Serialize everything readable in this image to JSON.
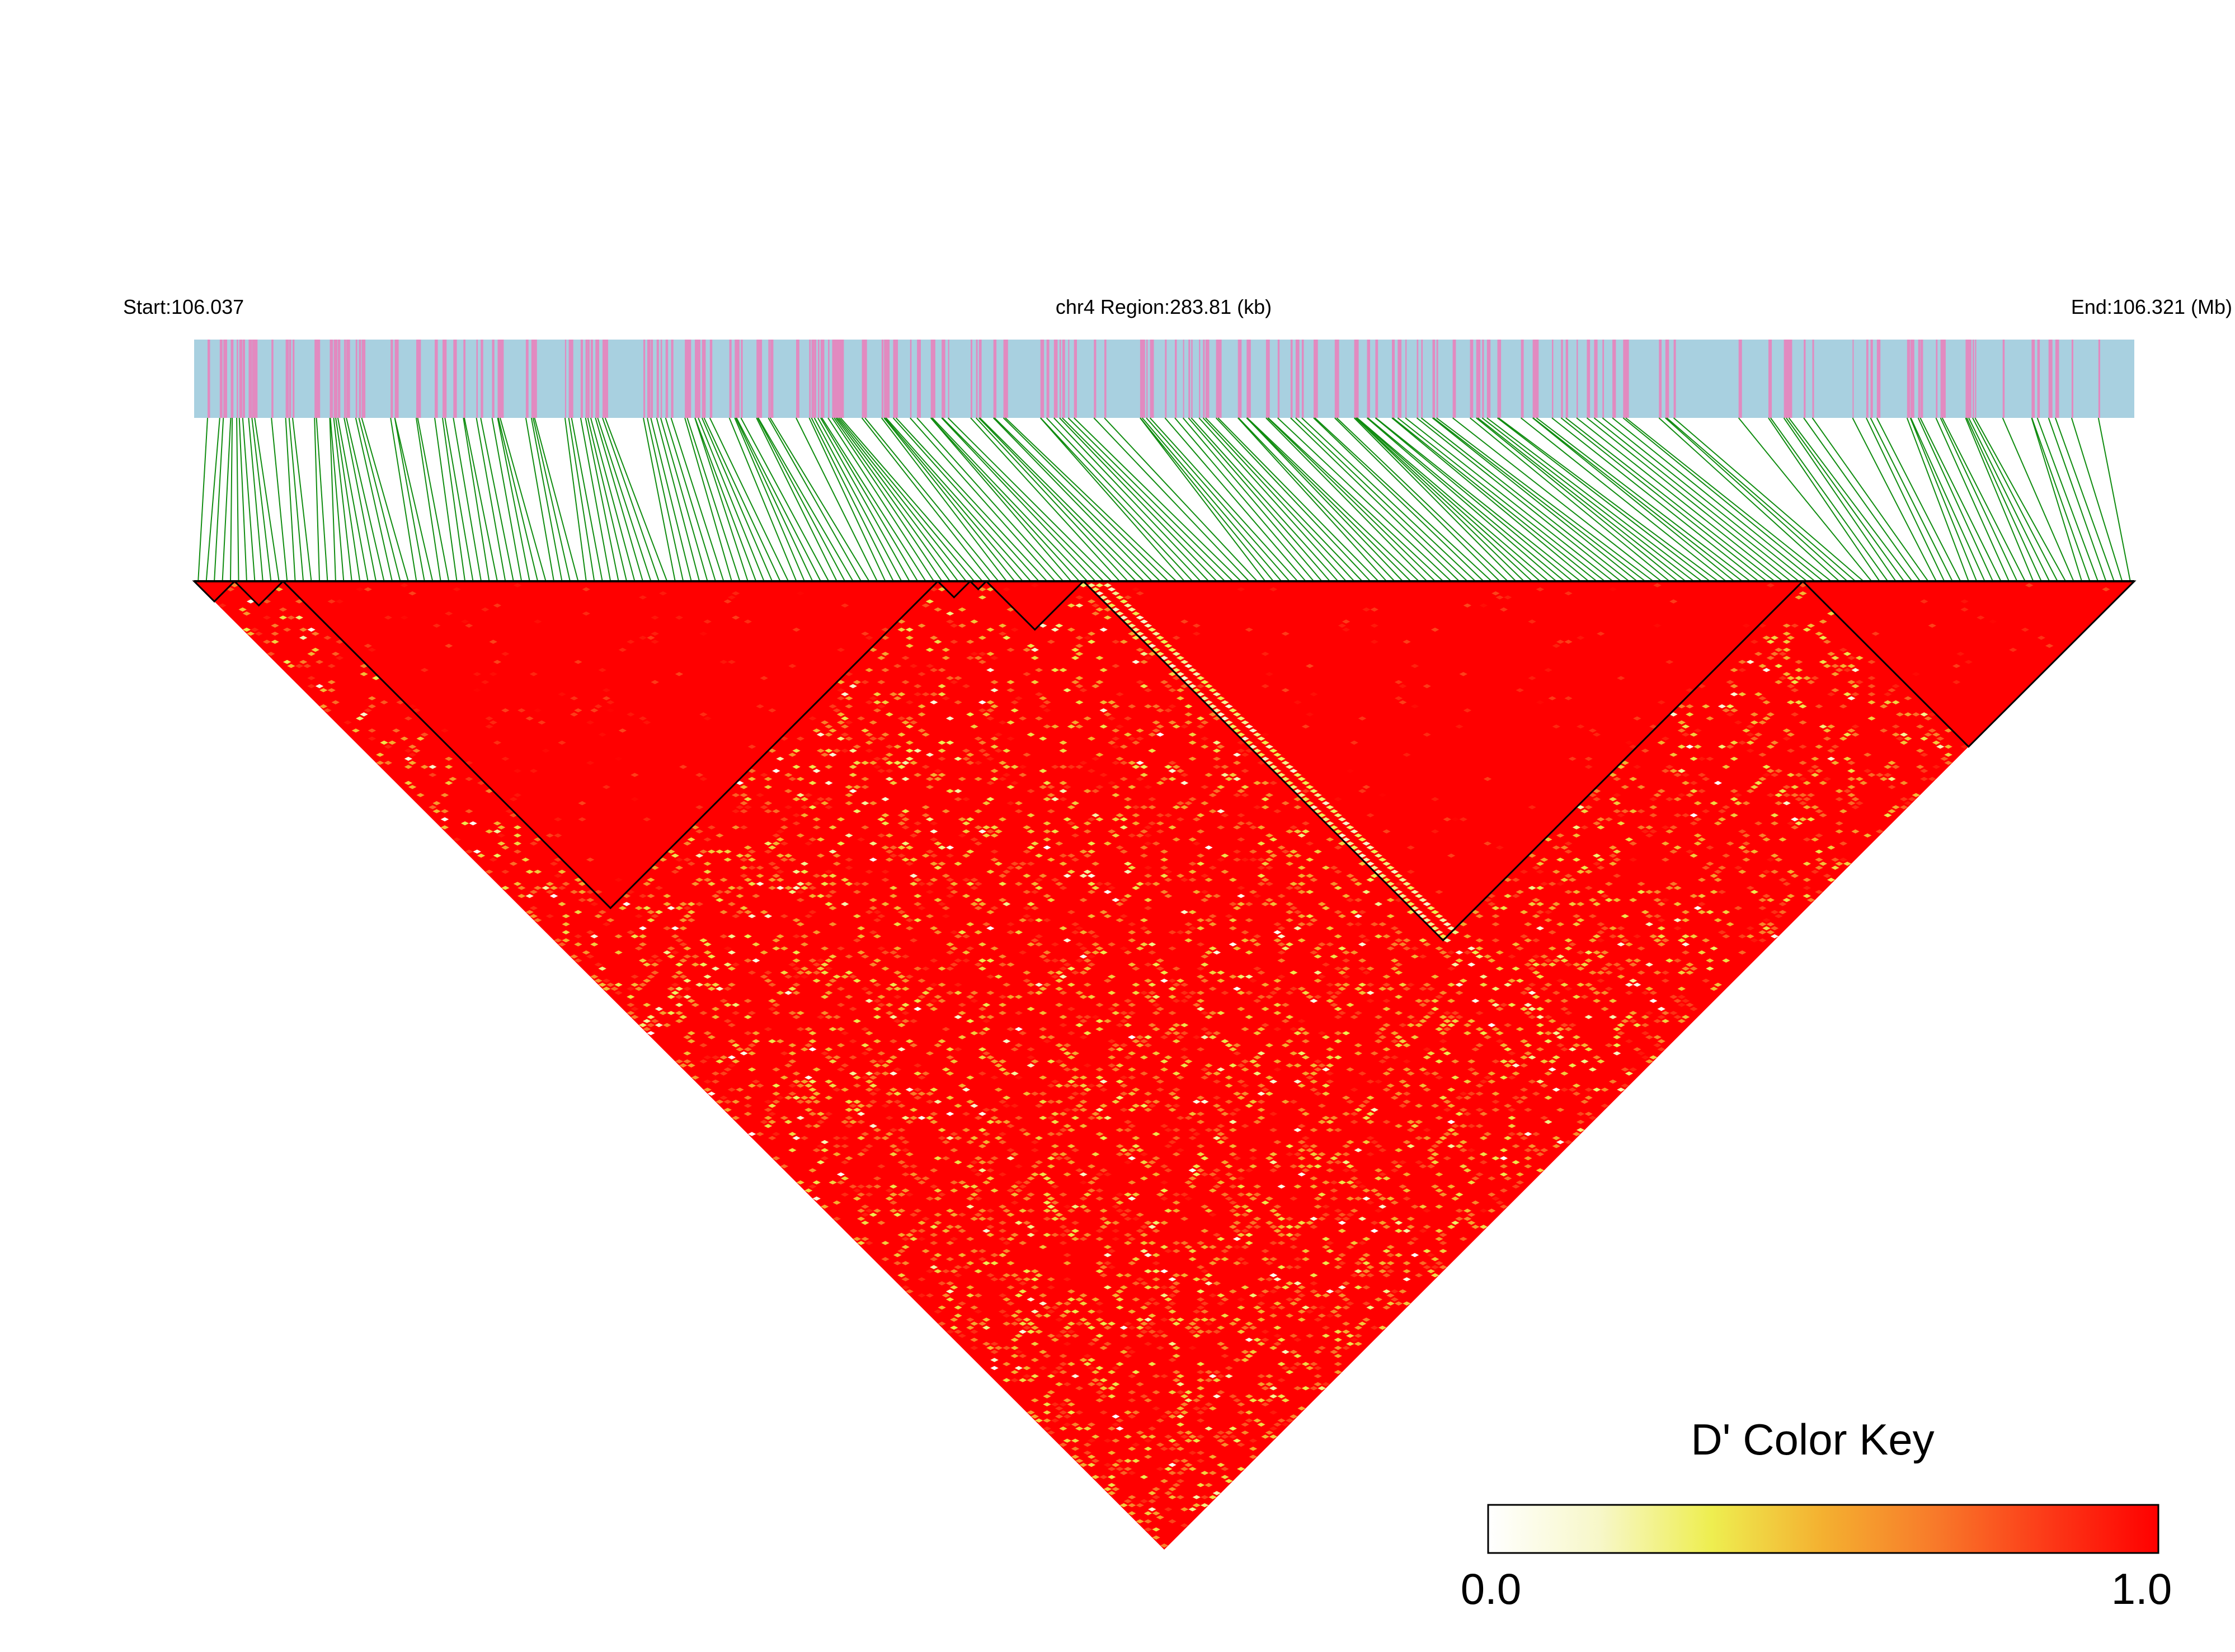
{
  "chart_data": {
    "type": "heatmap",
    "subtype": "ld-triangle",
    "header": {
      "start_label": "Start:106.037",
      "region_label": "chr4 Region:283.81 (kb)",
      "end_label": "End:106.321 (Mb)"
    },
    "region": {
      "chromosome": "chr4",
      "start_mb": 106.037,
      "end_mb": 106.321,
      "length_kb": 283.81
    },
    "metric": "D'",
    "color_key": {
      "title": "D' Color Key",
      "min_label": "0.0",
      "max_label": "1.0",
      "range": [
        0.0,
        1.0
      ],
      "stops": [
        "#ffffff",
        "#f7f7c8",
        "#eeee50",
        "#f4b030",
        "#f87a2a",
        "#fc3a18",
        "#ff0000"
      ]
    },
    "track_colors": {
      "band_base": "#a8d0e0",
      "band_stripe": "#e28ac0",
      "connector": "#108c10",
      "ld_dominant": "#ff0000"
    },
    "ld_blocks_fraction_of_region": [
      [
        0.0,
        0.02
      ],
      [
        0.02,
        0.045
      ],
      [
        0.045,
        0.385
      ],
      [
        0.385,
        0.398
      ],
      [
        0.398,
        0.41
      ],
      [
        0.41,
        0.46
      ],
      [
        0.46,
        0.83
      ],
      [
        0.83,
        1.0
      ]
    ],
    "notes_on_values": "Most pairwise D' values are near 1.0 (red); scattered lower values (orange/yellow/white) occur away from the diagonal."
  }
}
